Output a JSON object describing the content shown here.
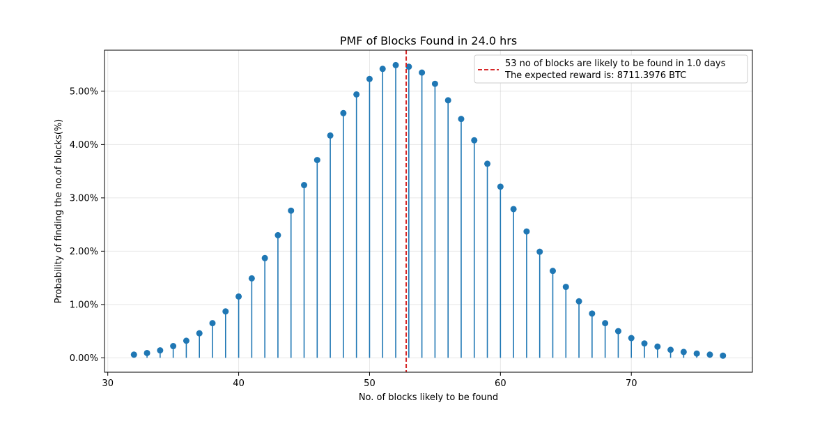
{
  "chart_data": {
    "type": "stem",
    "title": "PMF of Blocks Found in 24.0 hrs",
    "xlabel": "No. of blocks likely to be found",
    "ylabel": "Probability of finding the no.of blocks(%)",
    "xlim": [
      29.75,
      79.25
    ],
    "ylim": [
      -0.0027,
      0.0577
    ],
    "xticks": [
      30,
      40,
      50,
      60,
      70
    ],
    "xtick_labels": [
      "30",
      "40",
      "50",
      "60",
      "70"
    ],
    "yticks": [
      0,
      0.01,
      0.02,
      0.03,
      0.04,
      0.05
    ],
    "ytick_labels": [
      "0.00%",
      "1.00%",
      "2.00%",
      "3.00%",
      "4.00%",
      "5.00%"
    ],
    "grid": true,
    "legend_position": "top-right",
    "series": [
      {
        "x": [
          32,
          33,
          34,
          35,
          36,
          37,
          38,
          39,
          40,
          41,
          42,
          43,
          44,
          45,
          46,
          47,
          48,
          49,
          50,
          51,
          52,
          53,
          54,
          55,
          56,
          57,
          58,
          59,
          60,
          61,
          62,
          63,
          64,
          65,
          66,
          67,
          68,
          69,
          70,
          71,
          72,
          73,
          74,
          75,
          76,
          77
        ],
        "values": [
          0.0006,
          0.0009,
          0.0014,
          0.0022,
          0.0032,
          0.0046,
          0.0065,
          0.0087,
          0.0115,
          0.0149,
          0.0187,
          0.023,
          0.0276,
          0.0324,
          0.0371,
          0.0417,
          0.0459,
          0.0494,
          0.0523,
          0.0542,
          0.0549,
          0.0546,
          0.0535,
          0.0514,
          0.0483,
          0.0448,
          0.0408,
          0.0364,
          0.0321,
          0.0279,
          0.0237,
          0.0199,
          0.0163,
          0.0133,
          0.0106,
          0.0083,
          0.0065,
          0.005,
          0.0037,
          0.0027,
          0.0021,
          0.0015,
          0.0011,
          0.0008,
          0.0006,
          0.0004
        ],
        "color": "#1f77b4"
      }
    ],
    "vline": {
      "x": 52.8,
      "color": "#d62728",
      "label": "53 no of blocks are likely to be found in 1.0 days"
    },
    "legend_extra": "The expected reward is: 8711.3976 BTC"
  }
}
